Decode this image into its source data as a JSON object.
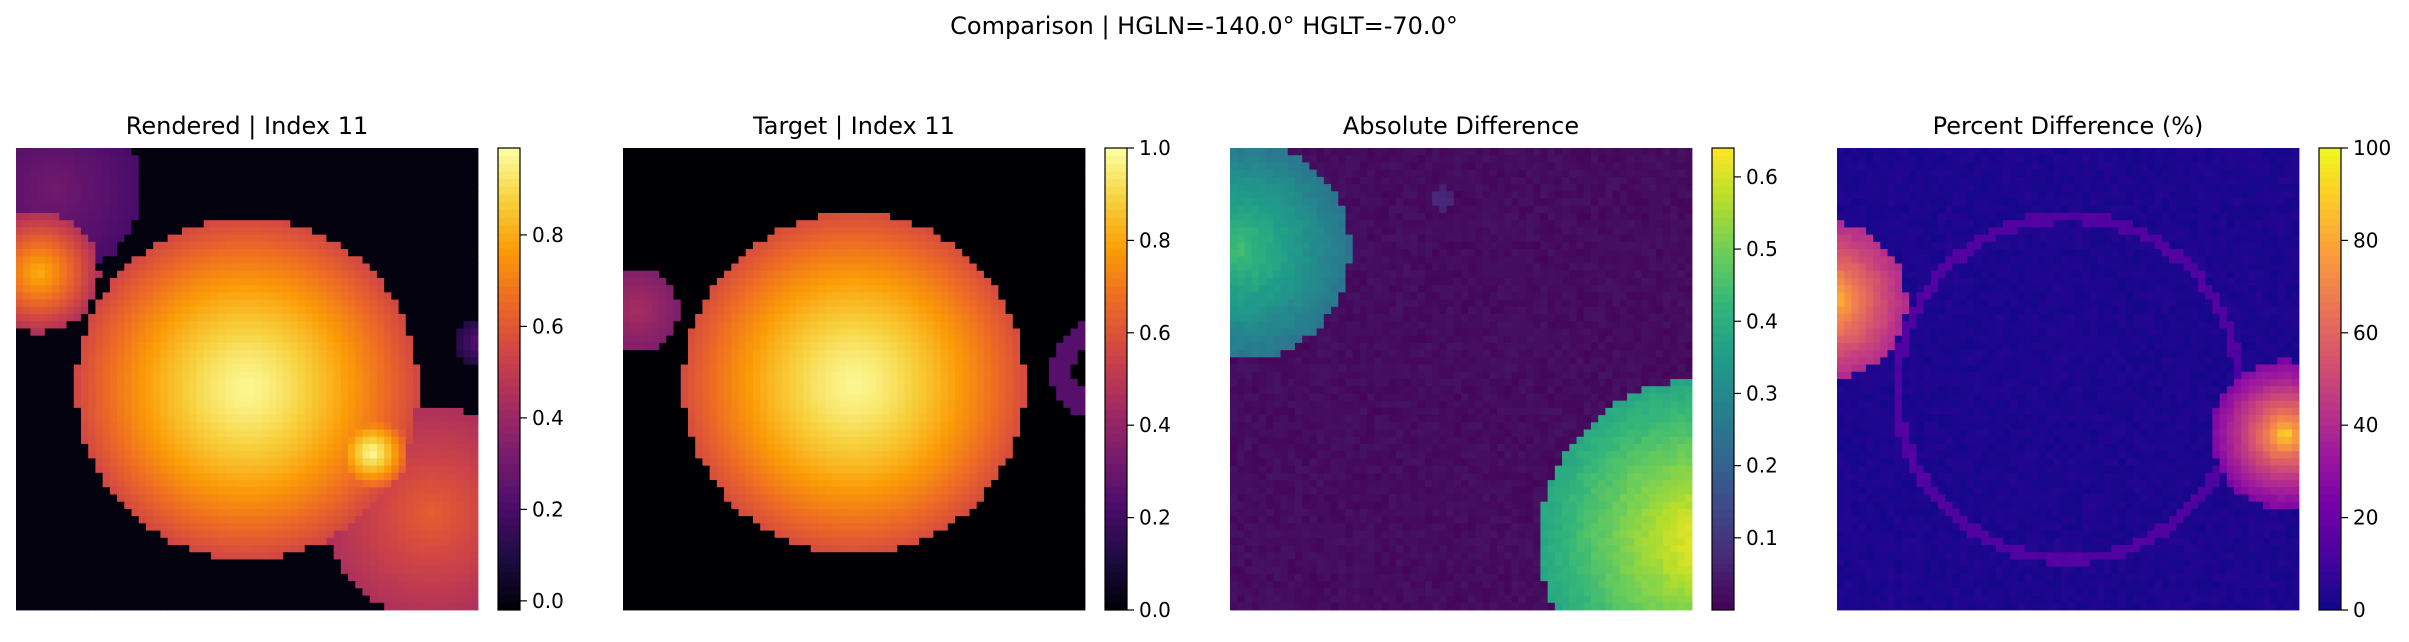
{
  "suptitle": "Comparison | HGLN=-140.0° HGLT=-70.0°",
  "chart_data": [
    {
      "type": "heatmap",
      "title": "Rendered | Index 11",
      "colormap": "inferno",
      "colorbar": {
        "range": [
          -0.02,
          0.99
        ],
        "ticks": [
          "0.0",
          "0.2",
          "0.4",
          "0.6",
          "0.8"
        ],
        "tick_values": [
          0.0,
          0.2,
          0.4,
          0.6,
          0.8
        ]
      },
      "background": 0.0,
      "blobs": [
        {
          "cx": 0.5,
          "cy": 0.52,
          "r": 0.37,
          "peak": 0.97,
          "edge": 0.55,
          "pow": 1.4
        },
        {
          "cx": 0.05,
          "cy": 0.27,
          "r": 0.13,
          "peak": 0.8,
          "edge": 0.45,
          "pow": 1.2
        },
        {
          "cx": 0.08,
          "cy": 0.09,
          "r": 0.19,
          "peak": 0.3,
          "edge": 0.2,
          "pow": 1.0
        },
        {
          "cx": 0.9,
          "cy": 0.79,
          "r": 0.23,
          "peak": 0.62,
          "edge": 0.45,
          "pow": 1.0
        },
        {
          "cx": 0.77,
          "cy": 0.66,
          "r": 0.08,
          "peak": 0.98,
          "edge": 0.6,
          "pow": 1.2
        },
        {
          "cx": 1.0,
          "cy": 0.42,
          "r": 0.05,
          "peak": 0.25,
          "edge": 0.1,
          "pow": 1.0
        }
      ]
    },
    {
      "type": "heatmap",
      "title": "Target | Index 11",
      "colormap": "inferno",
      "colorbar": {
        "range": [
          0.0,
          1.0
        ],
        "ticks": [
          "0.0",
          "0.2",
          "0.4",
          "0.6",
          "0.8",
          "1.0"
        ],
        "tick_values": [
          0.0,
          0.2,
          0.4,
          0.6,
          0.8,
          1.0
        ]
      },
      "background": 0.0,
      "blobs": [
        {
          "cx": 0.5,
          "cy": 0.51,
          "r": 0.37,
          "peak": 0.98,
          "edge": 0.58,
          "pow": 1.4
        },
        {
          "cx": 0.03,
          "cy": 0.35,
          "r": 0.09,
          "peak": 0.45,
          "edge": 0.35,
          "pow": 1.0
        }
      ],
      "rings": [
        {
          "cx": 1.03,
          "cy": 0.48,
          "r": 0.08,
          "w": 0.025,
          "v": 0.25
        }
      ]
    },
    {
      "type": "heatmap",
      "title": "Absolute Difference",
      "colormap": "viridis",
      "colorbar": {
        "range": [
          0.0,
          0.64
        ],
        "ticks": [
          "0.1",
          "0.2",
          "0.3",
          "0.4",
          "0.5",
          "0.6"
        ],
        "tick_values": [
          0.1,
          0.2,
          0.3,
          0.4,
          0.5,
          0.6
        ]
      },
      "background": 0.02,
      "noise": 0.012,
      "blobs": [
        {
          "cx": 0.02,
          "cy": 0.22,
          "r": 0.24,
          "peak": 0.44,
          "edge": 0.25,
          "pow": 1.0
        },
        {
          "cx": 1.02,
          "cy": 0.85,
          "r": 0.35,
          "peak": 0.63,
          "edge": 0.38,
          "pow": 1.0
        },
        {
          "cx": 0.46,
          "cy": 0.11,
          "r": 0.025,
          "peak": 0.08,
          "edge": 0.06,
          "pow": 1.0
        }
      ]
    },
    {
      "type": "heatmap",
      "title": "Percent Difference (%)",
      "colormap": "plasma",
      "colorbar": {
        "range": [
          0,
          100
        ],
        "ticks": [
          "0",
          "20",
          "40",
          "60",
          "80",
          "100"
        ],
        "tick_values": [
          0,
          20,
          40,
          60,
          80,
          100
        ]
      },
      "background": 3,
      "noise": 1.5,
      "blobs": [
        {
          "cx": -0.02,
          "cy": 0.33,
          "r": 0.17,
          "peak": 100,
          "edge": 40,
          "pow": 0.6
        },
        {
          "cx": 0.97,
          "cy": 0.62,
          "r": 0.16,
          "peak": 100,
          "edge": 25,
          "pow": 0.6
        }
      ],
      "rings": [
        {
          "cx": 0.5,
          "cy": 0.52,
          "r": 0.37,
          "w": 0.012,
          "v": 14
        }
      ]
    }
  ]
}
